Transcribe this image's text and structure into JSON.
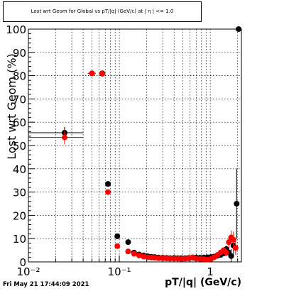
{
  "chart_data": {
    "type": "scatter",
    "title": "Lost wrt Geom for Global vs pT/|q| (GeV/c) at | η | <= 1.0",
    "xlabel": "pT/|q| (GeV/c)",
    "ylabel": "Lost wrt Geom (%)",
    "xscale": "log",
    "xlim": [
      0.01,
      2.0
    ],
    "ylim": [
      0,
      100
    ],
    "grid": true,
    "x_tick_labels": [
      "10⁻²",
      "10⁻¹",
      "1"
    ],
    "y_tick_labels": [
      "0",
      "10",
      "20",
      "30",
      "40",
      "50",
      "60",
      "70",
      "80",
      "90",
      "100"
    ],
    "series": [
      {
        "color": "#000000",
        "points": [
          {
            "x": 0.025,
            "y": 55.5,
            "xlo": 0.01,
            "xhi": 0.04,
            "err": 2.5
          },
          {
            "x": 0.05,
            "y": 81.0,
            "xlo": 0.045,
            "xhi": 0.055,
            "err": 0.8
          },
          {
            "x": 0.065,
            "y": 81.0,
            "xlo": 0.06,
            "xhi": 0.07,
            "err": 0.8
          },
          {
            "x": 0.075,
            "y": 33.5,
            "err": 1.0
          },
          {
            "x": 0.095,
            "y": 11.0,
            "err": 0.5
          },
          {
            "x": 0.125,
            "y": 8.5,
            "err": 0.5
          },
          {
            "x": 0.145,
            "y": 4.0
          },
          {
            "x": 0.165,
            "y": 3.2
          },
          {
            "x": 0.185,
            "y": 2.8
          },
          {
            "x": 0.205,
            "y": 2.4
          },
          {
            "x": 0.225,
            "y": 2.2
          },
          {
            "x": 0.245,
            "y": 2.1
          },
          {
            "x": 0.27,
            "y": 1.9
          },
          {
            "x": 0.3,
            "y": 1.8
          },
          {
            "x": 0.33,
            "y": 1.7
          },
          {
            "x": 0.36,
            "y": 1.6
          },
          {
            "x": 0.4,
            "y": 1.7
          },
          {
            "x": 0.44,
            "y": 1.6
          },
          {
            "x": 0.48,
            "y": 1.6
          },
          {
            "x": 0.53,
            "y": 1.6
          },
          {
            "x": 0.58,
            "y": 1.7
          },
          {
            "x": 0.64,
            "y": 1.8
          },
          {
            "x": 0.7,
            "y": 1.9
          },
          {
            "x": 0.77,
            "y": 1.8
          },
          {
            "x": 0.85,
            "y": 1.9
          },
          {
            "x": 0.93,
            "y": 2.0
          },
          {
            "x": 1.02,
            "y": 2.1
          },
          {
            "x": 1.1,
            "y": 2.3
          },
          {
            "x": 1.2,
            "y": 2.6
          },
          {
            "x": 1.3,
            "y": 3.0
          },
          {
            "x": 1.4,
            "y": 3.6
          },
          {
            "x": 1.5,
            "y": 5.5,
            "err": 1.5
          },
          {
            "x": 1.6,
            "y": 4.0,
            "err": 2.0
          },
          {
            "x": 1.7,
            "y": 2.5,
            "err": 3.0
          },
          {
            "x": 1.8,
            "y": 7.0,
            "err": 4.0
          },
          {
            "x": 1.95,
            "y": 25.0,
            "err": 15.0
          },
          {
            "x": 2.05,
            "y": 100.0
          }
        ]
      },
      {
        "color": "#ff0000",
        "points": [
          {
            "x": 0.025,
            "y": 53.5,
            "xlo": 0.01,
            "xhi": 0.04,
            "err": 3.0
          },
          {
            "x": 0.05,
            "y": 81.0,
            "xlo": 0.045,
            "xhi": 0.055,
            "err": 0.8
          },
          {
            "x": 0.065,
            "y": 80.8,
            "xlo": 0.06,
            "xhi": 0.07,
            "err": 0.8
          },
          {
            "x": 0.075,
            "y": 30.0,
            "err": 1.0
          },
          {
            "x": 0.095,
            "y": 6.8,
            "err": 0.5
          },
          {
            "x": 0.125,
            "y": 4.5
          },
          {
            "x": 0.145,
            "y": 3.5
          },
          {
            "x": 0.165,
            "y": 2.8
          },
          {
            "x": 0.185,
            "y": 2.3
          },
          {
            "x": 0.205,
            "y": 2.0
          },
          {
            "x": 0.225,
            "y": 1.9
          },
          {
            "x": 0.245,
            "y": 1.8
          },
          {
            "x": 0.27,
            "y": 1.6
          },
          {
            "x": 0.3,
            "y": 1.6
          },
          {
            "x": 0.33,
            "y": 1.5
          },
          {
            "x": 0.36,
            "y": 1.4
          },
          {
            "x": 0.4,
            "y": 1.4
          },
          {
            "x": 0.44,
            "y": 1.4
          },
          {
            "x": 0.48,
            "y": 1.3
          },
          {
            "x": 0.53,
            "y": 1.4
          },
          {
            "x": 0.58,
            "y": 1.5
          },
          {
            "x": 0.64,
            "y": 2.0
          },
          {
            "x": 0.7,
            "y": 1.4
          },
          {
            "x": 0.77,
            "y": 1.3
          },
          {
            "x": 0.85,
            "y": 1.2
          },
          {
            "x": 0.93,
            "y": 1.0
          },
          {
            "x": 1.02,
            "y": 1.3
          },
          {
            "x": 1.1,
            "y": 2.0
          },
          {
            "x": 1.2,
            "y": 3.0
          },
          {
            "x": 1.3,
            "y": 4.0
          },
          {
            "x": 1.4,
            "y": 5.0,
            "err": 1.0
          },
          {
            "x": 1.5,
            "y": 4.0,
            "err": 1.5
          },
          {
            "x": 1.6,
            "y": 8.5,
            "err": 2.5
          },
          {
            "x": 1.7,
            "y": 10.5,
            "err": 3.0
          },
          {
            "x": 1.8,
            "y": 9.5,
            "err": 3.5
          },
          {
            "x": 1.9,
            "y": 6.0,
            "err": 3.0
          }
        ]
      }
    ]
  },
  "footer": {
    "timestamp": "Fri May 21 17:44:09 2021"
  }
}
